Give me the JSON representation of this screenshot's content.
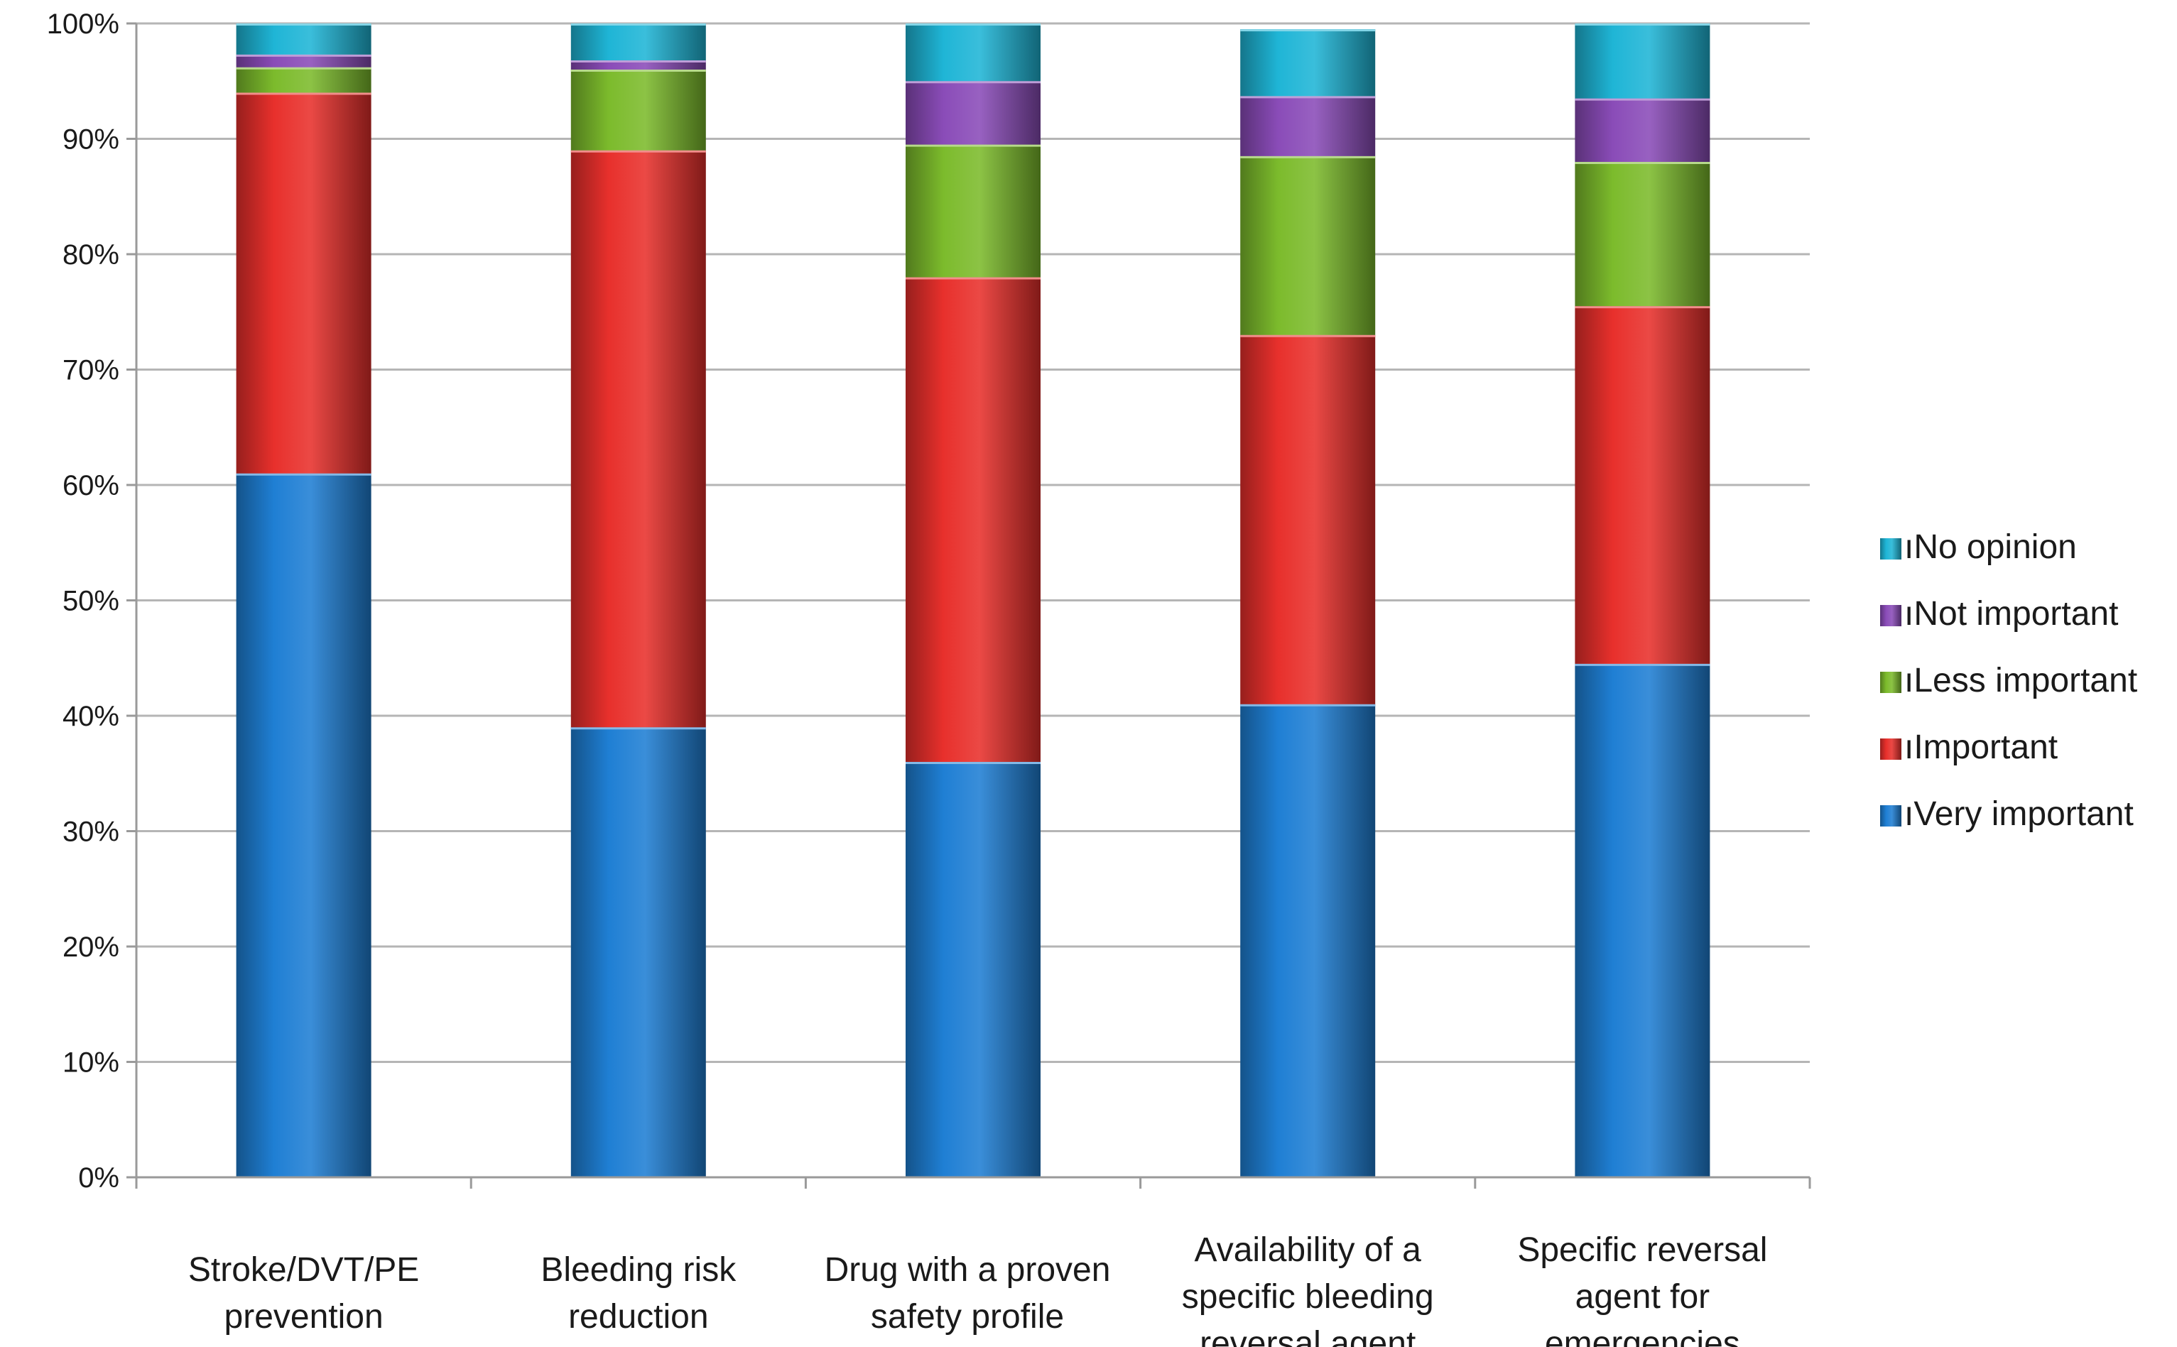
{
  "chart_data": {
    "type": "bar",
    "stacked": true,
    "percent_axis": true,
    "title": "",
    "xlabel": "",
    "ylabel": "",
    "ylim": [
      0,
      100
    ],
    "y_ticks": [
      "0%",
      "10%",
      "20%",
      "30%",
      "40%",
      "50%",
      "60%",
      "70%",
      "80%",
      "90%",
      "100%"
    ],
    "grid": true,
    "legend_position": "right",
    "categories": [
      [
        "Stroke/DVT/PE",
        "prevention"
      ],
      [
        "Bleeding risk",
        "reduction"
      ],
      [
        "Drug with a proven",
        "safety profile"
      ],
      [
        "Availability of a",
        "specific bleeding",
        "reversal agent"
      ],
      [
        "Specific reversal",
        "agent for",
        "emergencies"
      ]
    ],
    "series": [
      {
        "name": "Very important",
        "color": "#1f7fd4",
        "values": [
          61,
          39,
          36,
          41,
          44.5
        ]
      },
      {
        "name": "Important",
        "color": "#e8302c",
        "values": [
          33,
          50,
          42,
          32,
          31
        ]
      },
      {
        "name": "Less important",
        "color": "#7cbb2c",
        "values": [
          2.2,
          7,
          11.5,
          15.5,
          12.5
        ]
      },
      {
        "name": "Not important",
        "color": "#8a4cb8",
        "values": [
          1.1,
          0.8,
          5.5,
          5.2,
          5.5
        ]
      },
      {
        "name": "No opinion",
        "color": "#1fb5d6",
        "values": [
          2.7,
          3.2,
          5,
          5.8,
          6.5
        ]
      }
    ],
    "legend_order": [
      "No opinion",
      "Not important",
      "Less important",
      "Important",
      "Very important"
    ],
    "legend_marker": "ı"
  }
}
